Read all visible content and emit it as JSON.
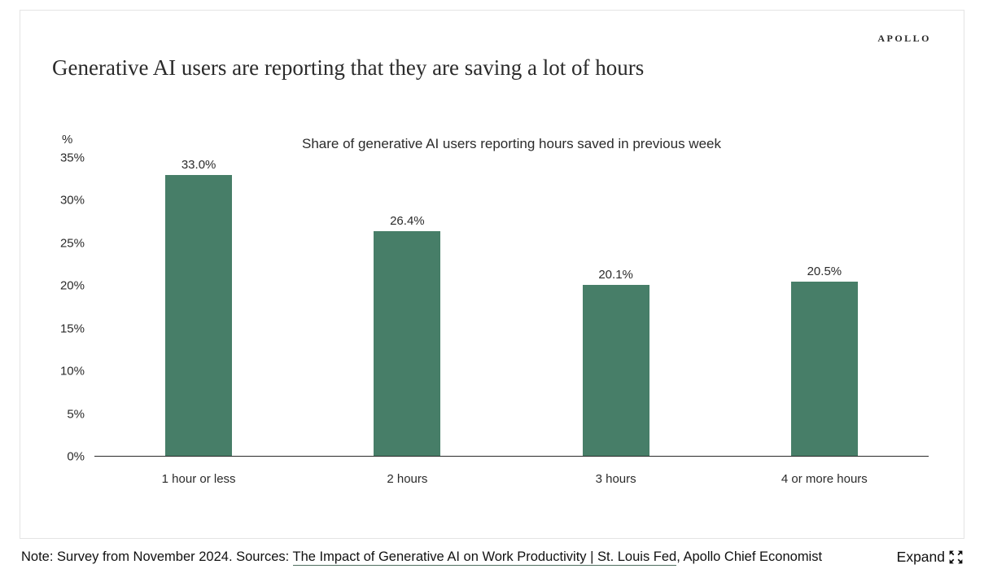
{
  "brand": {
    "logo_text": "APOLLO"
  },
  "header": {
    "title": "Generative AI users are reporting that they are saving a lot of hours"
  },
  "chart_data": {
    "type": "bar",
    "title": "Share of generative AI users reporting hours saved in previous week",
    "categories": [
      "1 hour or less",
      "2 hours",
      "3 hours",
      "4 or more hours"
    ],
    "values": [
      33.0,
      26.4,
      20.1,
      20.5
    ],
    "value_labels": [
      "33.0%",
      "26.4%",
      "20.1%",
      "20.5%"
    ],
    "xlabel": "",
    "ylabel": "%",
    "ylim": [
      0,
      35
    ],
    "yticks": [
      0,
      5,
      10,
      15,
      20,
      25,
      30,
      35
    ],
    "ytick_labels": [
      "0%",
      "5%",
      "10%",
      "15%",
      "20%",
      "25%",
      "30%",
      "35%"
    ],
    "bar_color": "#477E68",
    "grid": false,
    "legend": false
  },
  "footer": {
    "note_prefix": "Note: Survey from November 2024. Sources: ",
    "source_link": "The Impact of Generative AI on Work Productivity | St. Louis Fed",
    "note_suffix": ", Apollo Chief Economist",
    "expand_label": "Expand"
  }
}
